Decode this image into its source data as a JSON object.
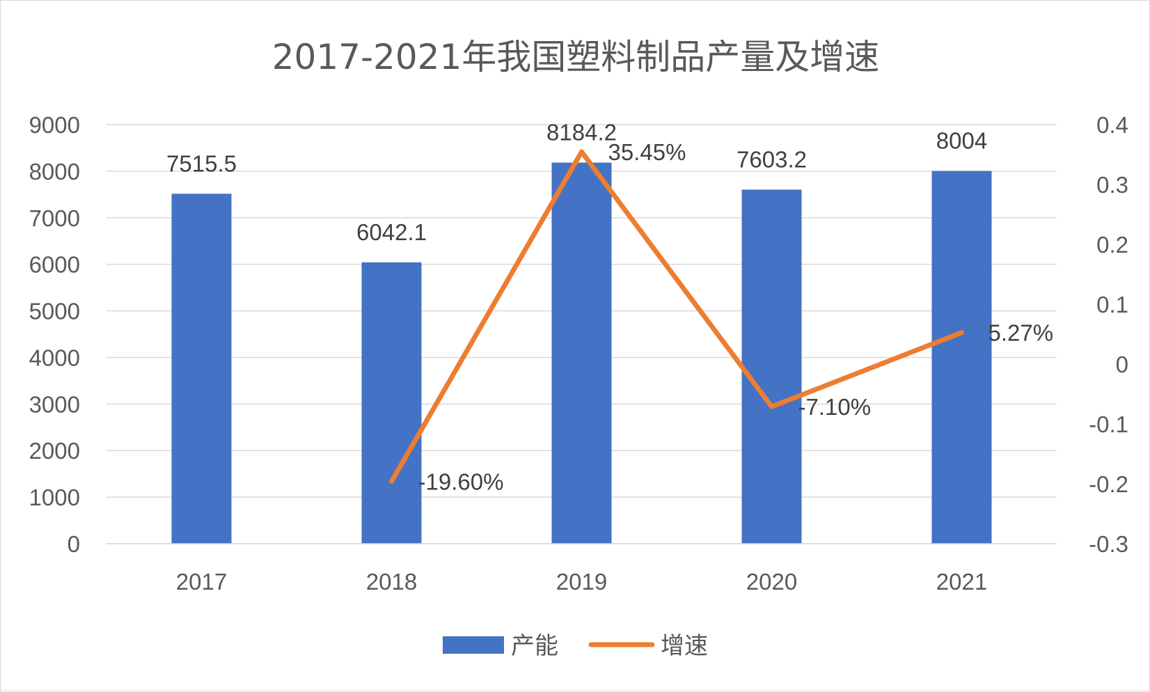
{
  "chart_data": {
    "type": "bar",
    "title": "2017-2021年我国塑料制品产量及增速",
    "categories": [
      "2017",
      "2018",
      "2019",
      "2020",
      "2021"
    ],
    "series": [
      {
        "name": "产能",
        "type": "bar",
        "axis": "left",
        "values": [
          7515.5,
          6042.1,
          8184.2,
          7603.2,
          8004
        ],
        "labels": [
          "7515.5",
          "6042.1",
          "8184.2",
          "7603.2",
          "8004"
        ],
        "color": "#4472c4"
      },
      {
        "name": "增速",
        "type": "line",
        "axis": "right",
        "values": [
          null,
          -0.196,
          0.3545,
          -0.071,
          0.0527
        ],
        "labels": [
          "",
          "-19.60%",
          "35.45%",
          "-7.10%",
          "5.27%"
        ],
        "color": "#ed7d31"
      }
    ],
    "y_left": {
      "range": [
        0,
        9000
      ],
      "ticks": [
        "0",
        "1000",
        "2000",
        "3000",
        "4000",
        "5000",
        "6000",
        "7000",
        "8000",
        "9000"
      ]
    },
    "y_right": {
      "range": [
        -0.3,
        0.4
      ],
      "ticks": [
        "-0.3",
        "-0.2",
        "-0.1",
        "0",
        "0.1",
        "0.2",
        "0.3",
        "0.4"
      ]
    },
    "grid": true,
    "legend": "bottom"
  }
}
